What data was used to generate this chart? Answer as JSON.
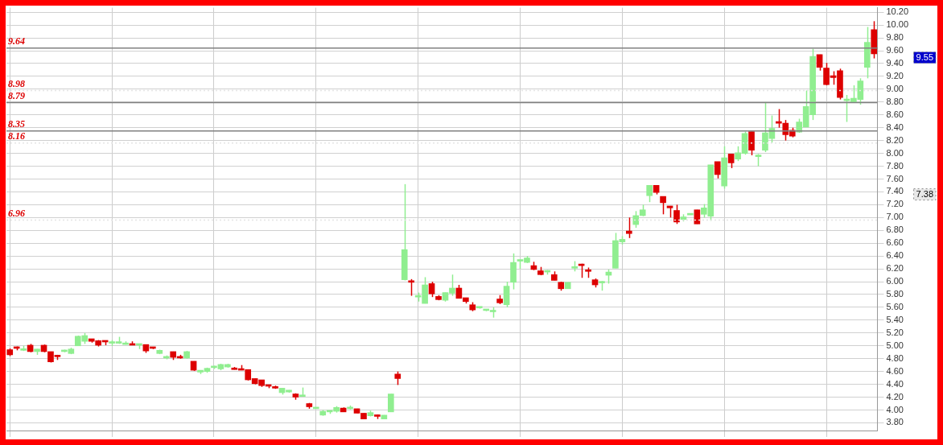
{
  "chart_data": {
    "type": "candlestick",
    "categories": [
      null,
      null,
      null,
      null,
      null,
      null,
      null,
      null,
      null,
      null,
      null,
      null,
      null,
      null,
      null,
      null,
      null,
      null,
      null,
      null,
      null,
      null,
      null,
      null,
      null,
      null,
      null,
      null,
      null,
      null,
      null,
      null,
      null,
      null,
      null,
      null,
      null,
      null,
      null,
      null,
      null,
      null,
      null,
      null,
      null,
      null,
      null,
      null,
      null,
      null,
      null,
      null,
      null,
      null,
      null,
      null,
      null,
      null,
      null,
      null,
      null,
      null,
      null,
      null,
      null,
      null,
      null,
      null,
      null,
      null,
      null,
      null,
      null,
      null,
      null,
      null,
      null,
      null,
      null,
      null,
      null,
      null,
      null,
      null,
      null,
      null,
      null,
      null,
      null,
      null,
      null,
      null,
      null,
      null,
      null,
      null,
      null,
      null,
      null,
      null,
      null,
      null,
      null,
      null,
      null,
      null,
      null,
      null,
      null,
      null,
      null,
      null,
      null,
      null,
      null,
      null,
      null,
      null,
      null,
      null,
      null,
      null,
      null,
      null,
      null,
      null,
      null,
      null
    ],
    "ohlc": [
      [
        4.94,
        4.96,
        4.84,
        4.86
      ],
      [
        4.97,
        4.99,
        4.93,
        4.96
      ],
      [
        4.93,
        5.0,
        4.92,
        4.94
      ],
      [
        5.01,
        5.03,
        4.9,
        4.91
      ],
      [
        4.91,
        4.95,
        4.86,
        4.95
      ],
      [
        5.01,
        5.02,
        4.9,
        4.91
      ],
      [
        4.91,
        4.91,
        4.74,
        4.75
      ],
      [
        4.84,
        4.86,
        4.78,
        4.83
      ],
      [
        4.91,
        4.94,
        4.9,
        4.93
      ],
      [
        4.88,
        4.97,
        4.87,
        4.95
      ],
      [
        5.0,
        5.16,
        5.0,
        5.15
      ],
      [
        5.07,
        5.2,
        5.03,
        5.16
      ],
      [
        5.11,
        5.11,
        5.05,
        5.07
      ],
      [
        5.08,
        5.09,
        4.99,
        5.01
      ],
      [
        5.07,
        5.07,
        5.01,
        5.06
      ],
      [
        5.04,
        5.09,
        5.0,
        5.05
      ],
      [
        5.04,
        5.14,
        5.03,
        5.05
      ],
      [
        5.02,
        5.07,
        5.02,
        5.03
      ],
      [
        5.02,
        5.07,
        5.01,
        5.01
      ],
      [
        5.01,
        5.02,
        4.95,
        5.02
      ],
      [
        5.02,
        5.02,
        4.89,
        4.92
      ],
      [
        4.97,
        4.97,
        4.95,
        4.96
      ],
      [
        4.88,
        4.94,
        4.87,
        4.93
      ],
      [
        4.81,
        4.85,
        4.79,
        4.82
      ],
      [
        4.91,
        4.91,
        4.78,
        4.82
      ],
      [
        4.82,
        4.86,
        4.8,
        4.81
      ],
      [
        4.81,
        4.92,
        4.8,
        4.91
      ],
      [
        4.76,
        4.76,
        4.61,
        4.62
      ],
      [
        4.59,
        4.62,
        4.56,
        4.62
      ],
      [
        4.6,
        4.66,
        4.58,
        4.65
      ],
      [
        4.66,
        4.69,
        4.64,
        4.67
      ],
      [
        4.64,
        4.72,
        4.62,
        4.71
      ],
      [
        4.67,
        4.72,
        4.66,
        4.71
      ],
      [
        4.64,
        4.67,
        4.63,
        4.63
      ],
      [
        4.63,
        4.7,
        4.62,
        4.62
      ],
      [
        4.63,
        4.63,
        4.46,
        4.47
      ],
      [
        4.49,
        4.49,
        4.4,
        4.41
      ],
      [
        4.47,
        4.47,
        4.36,
        4.38
      ],
      [
        4.38,
        4.39,
        4.34,
        4.37
      ],
      [
        4.35,
        4.38,
        4.33,
        4.34
      ],
      [
        4.27,
        4.34,
        4.24,
        4.34
      ],
      [
        4.28,
        4.31,
        4.27,
        4.31
      ],
      [
        4.25,
        4.26,
        4.16,
        4.2
      ],
      [
        4.21,
        4.35,
        4.21,
        4.22
      ],
      [
        4.1,
        4.11,
        4.02,
        4.05
      ],
      [
        4.02,
        4.04,
        4.02,
        4.04
      ],
      [
        3.92,
        4.0,
        3.91,
        3.98
      ],
      [
        3.97,
        3.98,
        3.94,
        3.98
      ],
      [
        3.98,
        4.06,
        3.96,
        4.04
      ],
      [
        4.03,
        4.04,
        3.97,
        3.97
      ],
      [
        4.02,
        4.07,
        4.01,
        4.04
      ],
      [
        4.02,
        4.02,
        3.95,
        3.95
      ],
      [
        3.95,
        3.95,
        3.86,
        3.86
      ],
      [
        3.91,
        3.99,
        3.9,
        3.96
      ],
      [
        3.91,
        3.93,
        3.86,
        3.9
      ],
      [
        3.86,
        3.92,
        3.86,
        3.92
      ],
      [
        3.97,
        4.25,
        3.97,
        4.25
      ],
      [
        4.56,
        4.6,
        4.39,
        4.49
      ],
      [
        6.03,
        7.52,
        6.02,
        6.5
      ],
      [
        6.0,
        6.04,
        5.78,
        5.99
      ],
      [
        5.76,
        5.83,
        5.69,
        5.77
      ],
      [
        5.66,
        6.07,
        5.66,
        5.95
      ],
      [
        5.97,
        6.0,
        5.76,
        5.81
      ],
      [
        5.77,
        5.79,
        5.71,
        5.72
      ],
      [
        5.71,
        5.83,
        5.69,
        5.83
      ],
      [
        5.82,
        6.11,
        5.78,
        5.9
      ],
      [
        5.9,
        5.95,
        5.74,
        5.74
      ],
      [
        5.75,
        5.75,
        5.66,
        5.69
      ],
      [
        5.64,
        5.68,
        5.54,
        5.56
      ],
      [
        5.59,
        5.61,
        5.58,
        5.6
      ],
      [
        5.55,
        5.56,
        5.54,
        5.56
      ],
      [
        5.53,
        5.6,
        5.44,
        5.55
      ],
      [
        5.73,
        5.79,
        5.65,
        5.67
      ],
      [
        5.64,
        6.0,
        5.6,
        5.93
      ],
      [
        5.99,
        6.44,
        5.88,
        6.3
      ],
      [
        6.32,
        6.33,
        6.2,
        6.33
      ],
      [
        6.3,
        6.4,
        6.29,
        6.37
      ],
      [
        6.25,
        6.31,
        6.18,
        6.19
      ],
      [
        6.17,
        6.23,
        6.1,
        6.11
      ],
      [
        6.15,
        6.18,
        6.11,
        6.17
      ],
      [
        6.11,
        6.16,
        6.02,
        6.02
      ],
      [
        5.99,
        6.0,
        5.86,
        5.89
      ],
      [
        5.89,
        5.99,
        5.89,
        5.99
      ],
      [
        6.21,
        6.32,
        6.16,
        6.22
      ],
      [
        6.26,
        6.28,
        6.06,
        6.25
      ],
      [
        6.17,
        6.22,
        6.06,
        6.16
      ],
      [
        6.03,
        6.05,
        5.91,
        5.95
      ],
      [
        5.98,
        6.01,
        5.86,
        5.99
      ],
      [
        6.1,
        6.19,
        5.97,
        6.15
      ],
      [
        6.21,
        6.76,
        6.21,
        6.64
      ],
      [
        6.62,
        6.71,
        6.58,
        6.66
      ],
      [
        6.79,
        7.0,
        6.68,
        6.75
      ],
      [
        6.89,
        7.1,
        6.84,
        7.03
      ],
      [
        7.03,
        7.2,
        7.02,
        7.12
      ],
      [
        7.34,
        7.5,
        7.24,
        7.5
      ],
      [
        7.5,
        7.5,
        7.36,
        7.39
      ],
      [
        7.33,
        7.33,
        7.05,
        7.23
      ],
      [
        7.18,
        7.18,
        7.0,
        7.15
      ],
      [
        7.11,
        7.2,
        6.9,
        6.93
      ],
      [
        6.97,
        7.05,
        6.94,
        7.01
      ],
      [
        7.04,
        7.05,
        7.04,
        7.05
      ],
      [
        7.12,
        7.12,
        6.9,
        6.9
      ],
      [
        7.05,
        7.21,
        7.0,
        7.15
      ],
      [
        7.02,
        7.82,
        6.95,
        7.82
      ],
      [
        7.87,
        7.87,
        7.61,
        7.67
      ],
      [
        7.49,
        8.11,
        7.45,
        7.93
      ],
      [
        7.99,
        7.99,
        7.77,
        7.85
      ],
      [
        7.91,
        8.11,
        7.88,
        8.01
      ],
      [
        8.0,
        8.34,
        7.98,
        8.31
      ],
      [
        8.34,
        8.34,
        7.97,
        8.05
      ],
      [
        7.95,
        7.99,
        7.8,
        7.96
      ],
      [
        8.05,
        8.8,
        8.02,
        8.32
      ],
      [
        8.23,
        8.59,
        8.17,
        8.39
      ],
      [
        8.49,
        8.69,
        8.4,
        8.47
      ],
      [
        8.47,
        8.52,
        8.2,
        8.29
      ],
      [
        8.36,
        8.4,
        8.25,
        8.27
      ],
      [
        8.33,
        8.54,
        8.32,
        8.49
      ],
      [
        8.41,
        8.98,
        8.41,
        8.73
      ],
      [
        8.6,
        9.63,
        8.52,
        9.51
      ],
      [
        9.54,
        9.54,
        9.29,
        9.34
      ],
      [
        9.33,
        9.41,
        9.06,
        9.07
      ],
      [
        9.21,
        9.28,
        9.07,
        9.18
      ],
      [
        9.29,
        9.32,
        8.84,
        8.87
      ],
      [
        8.82,
        8.91,
        8.49,
        8.83
      ],
      [
        8.8,
        9.06,
        8.79,
        8.86
      ],
      [
        8.84,
        9.17,
        8.76,
        9.13
      ],
      [
        9.34,
        9.97,
        9.17,
        9.73
      ],
      [
        9.93,
        10.06,
        9.48,
        9.55
      ]
    ],
    "colors": [
      "#dd0000",
      "#dd0000",
      "#90ee90",
      "#dd0000",
      "#90ee90",
      "#dd0000",
      "#dd0000",
      "#dd0000",
      "#90ee90",
      "#90ee90",
      "#90ee90",
      "#90ee90",
      "#dd0000",
      "#dd0000",
      "#dd0000",
      "#90ee90",
      "#90ee90",
      "#90ee90",
      "#dd0000",
      "#90ee90",
      "#dd0000",
      "#dd0000",
      "#90ee90",
      "#90ee90",
      "#dd0000",
      "#dd0000",
      "#90ee90",
      "#dd0000",
      "#90ee90",
      "#90ee90",
      "#90ee90",
      "#90ee90",
      "#90ee90",
      "#dd0000",
      "#dd0000",
      "#dd0000",
      "#dd0000",
      "#dd0000",
      "#dd0000",
      "#dd0000",
      "#90ee90",
      "#90ee90",
      "#dd0000",
      "#90ee90",
      "#dd0000",
      "#90ee90",
      "#90ee90",
      "#90ee90",
      "#90ee90",
      "#dd0000",
      "#90ee90",
      "#dd0000",
      "#dd0000",
      "#90ee90",
      "#dd0000",
      "#90ee90",
      "#90ee90",
      "#dd0000",
      "#90ee90",
      "#dd0000",
      "#90ee90",
      "#90ee90",
      "#dd0000",
      "#dd0000",
      "#90ee90",
      "#90ee90",
      "#dd0000",
      "#dd0000",
      "#dd0000",
      "#90ee90",
      "#90ee90",
      "#90ee90",
      "#dd0000",
      "#90ee90",
      "#90ee90",
      "#90ee90",
      "#90ee90",
      "#dd0000",
      "#dd0000",
      "#90ee90",
      "#dd0000",
      "#dd0000",
      "#90ee90",
      "#90ee90",
      "#dd0000",
      "#dd0000",
      "#dd0000",
      "#90ee90",
      "#90ee90",
      "#90ee90",
      "#90ee90",
      "#dd0000",
      "#90ee90",
      "#90ee90",
      "#90ee90",
      "#dd0000",
      "#dd0000",
      "#dd0000",
      "#dd0000",
      "#90ee90",
      "#90ee90",
      "#dd0000",
      "#90ee90",
      "#90ee90",
      "#dd0000",
      "#90ee90",
      "#dd0000",
      "#90ee90",
      "#90ee90",
      "#dd0000",
      "#90ee90",
      "#90ee90",
      "#90ee90",
      "#dd0000",
      "#dd0000",
      "#dd0000",
      "#90ee90",
      "#90ee90",
      "#90ee90",
      "#dd0000",
      "#dd0000",
      "#dd0000",
      "#dd0000",
      "#90ee90",
      "#90ee90",
      "#90ee90",
      "#90ee90",
      "#dd0000"
    ],
    "ylim": [
      3.68,
      10.27
    ],
    "yticks": [
      {
        "value": 3.8,
        "label": "3.80"
      },
      {
        "value": 4.0,
        "label": "4.00"
      },
      {
        "value": 4.2,
        "label": "4.20"
      },
      {
        "value": 4.4,
        "label": "4.40"
      },
      {
        "value": 4.6,
        "label": "4.60"
      },
      {
        "value": 4.8,
        "label": "4.80"
      },
      {
        "value": 5.0,
        "label": "5.00"
      },
      {
        "value": 5.2,
        "label": "5.20"
      },
      {
        "value": 5.4,
        "label": "5.40"
      },
      {
        "value": 5.6,
        "label": "5.60"
      },
      {
        "value": 5.8,
        "label": "5.80"
      },
      {
        "value": 6.0,
        "label": "6.00"
      },
      {
        "value": 6.2,
        "label": "6.20"
      },
      {
        "value": 6.4,
        "label": "6.40"
      },
      {
        "value": 6.6,
        "label": "6.60"
      },
      {
        "value": 6.8,
        "label": "6.80"
      },
      {
        "value": 7.0,
        "label": "7.00"
      },
      {
        "value": 7.2,
        "label": "7.20"
      },
      {
        "value": 7.4,
        "label": "7.40"
      },
      {
        "value": 7.6,
        "label": "7.60"
      },
      {
        "value": 7.8,
        "label": "7.80"
      },
      {
        "value": 8.0,
        "label": "8.00"
      },
      {
        "value": 8.2,
        "label": "8.20"
      },
      {
        "value": 8.4,
        "label": "8.40"
      },
      {
        "value": 8.6,
        "label": "8.60"
      },
      {
        "value": 8.8,
        "label": "8.80"
      },
      {
        "value": 9.0,
        "label": "9.00"
      },
      {
        "value": 9.2,
        "label": "9.20"
      },
      {
        "value": 9.4,
        "label": "9.40"
      },
      {
        "value": 9.6,
        "label": "9.60"
      },
      {
        "value": 9.8,
        "label": "9.80"
      },
      {
        "value": 10.0,
        "label": "10.00"
      },
      {
        "value": 10.2,
        "label": "10.20"
      }
    ],
    "tick_labels": "y",
    "grid": true,
    "legend": false,
    "ref_lines": [
      {
        "axis": "y",
        "value": 9.64,
        "label": "9.64",
        "color": "#808080"
      },
      {
        "axis": "y",
        "value": 8.98,
        "label": "8.98",
        "color": "#e4e4e4",
        "line_style": "dotted"
      },
      {
        "axis": "y",
        "value": 8.79,
        "label": "8.79",
        "color": "#808080"
      },
      {
        "axis": "y",
        "value": 8.35,
        "label": "8.35",
        "color": "#808080"
      },
      {
        "axis": "y",
        "value": 8.16,
        "label": "8.16",
        "color": "#e4e4e4",
        "line_style": "dotted"
      },
      {
        "axis": "y",
        "value": 6.96,
        "label": "6.96",
        "color": "#e4e4e4",
        "line_style": "dotted"
      }
    ],
    "annotations": [
      "9.55",
      "7.38"
    ]
  }
}
